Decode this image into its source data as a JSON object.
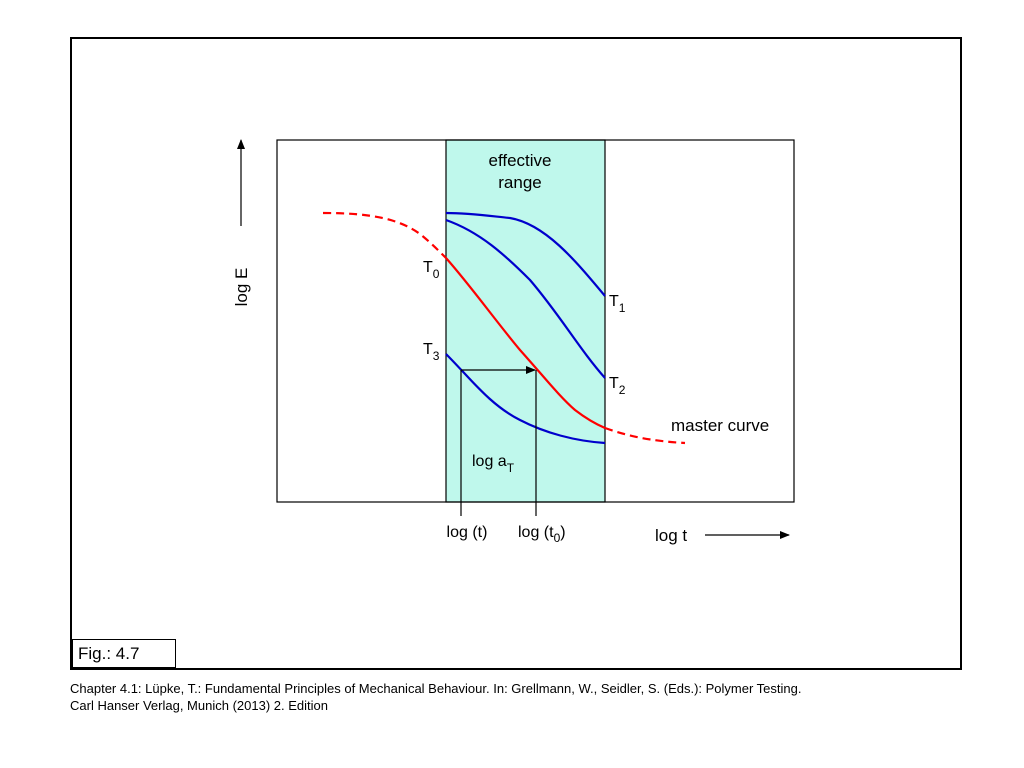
{
  "figure": {
    "effective_range": [
      "effective",
      "range"
    ],
    "y_axis_label": "log E",
    "x_axis_label": "log t",
    "master_curve": "master curve",
    "shift_label": {
      "base": "log a",
      "sub": "T"
    },
    "tick_t": "log (t)",
    "tick_t0": {
      "open": "log (t",
      "sub": "0",
      "close": ")"
    },
    "curves": [
      {
        "name": "T",
        "sub": "0",
        "color": "#ff0000"
      },
      {
        "name": "T",
        "sub": "1",
        "color": "#0000cc"
      },
      {
        "name": "T",
        "sub": "2",
        "color": "#0000cc"
      },
      {
        "name": "T",
        "sub": "3",
        "color": "#0000cc"
      }
    ],
    "range_fill": "#bff8ec"
  },
  "fig_label": "Fig.: 4.7",
  "caption": [
    "Chapter 4.1: Lüpke, T.: Fundamental Principles of Mechanical Behaviour. In: Grellmann, W., Seidler, S. (Eds.): Polymer Testing.",
    "Carl Hanser Verlag, Munich (2013) 2. Edition"
  ]
}
